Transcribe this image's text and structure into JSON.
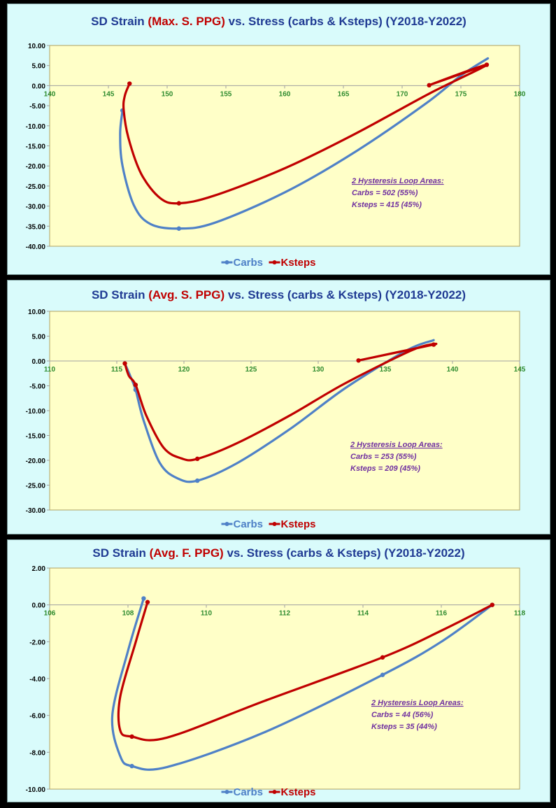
{
  "colors": {
    "carbs": "#4f81c7",
    "ksteps": "#c00000",
    "title_blue": "#1f3a93",
    "title_red": "#c00000",
    "annot": "#7030a0",
    "plot_bg": "#ffffc8",
    "plot_border": "#b0a060",
    "axis": "#a0a0a0",
    "x_tick": "#2e8b2e"
  },
  "legend": {
    "carbs": "Carbs",
    "ksteps": "Ksteps"
  },
  "chart_data": [
    {
      "type": "line",
      "title_prefix": "SD Strain ",
      "title_highlight": "(Max. S. PPG)",
      "title_suffix": " vs. Stress (carbs & Ksteps)  (Y2018-Y2022)",
      "xlim": [
        140,
        180
      ],
      "ylim": [
        -40,
        10
      ],
      "x_ticks": [
        "140",
        "145",
        "150",
        "155",
        "160",
        "165",
        "170",
        "175",
        "180"
      ],
      "y_ticks": [
        "10.00",
        "5.00",
        "0.00",
        "-5.00",
        "-10.00",
        "-15.00",
        "-20.00",
        "-25.00",
        "-30.00",
        "-35.00",
        "-40.00"
      ],
      "series": [
        {
          "name": "Carbs",
          "points": [
            [
              146.2,
              -6.2
            ],
            [
              146.0,
              -12.0
            ],
            [
              146.2,
              -20.0
            ],
            [
              147.2,
              -30.0
            ],
            [
              148.6,
              -34.5
            ],
            [
              151.0,
              -35.6
            ],
            [
              154.0,
              -34.2
            ],
            [
              160.0,
              -26.6
            ],
            [
              166.0,
              -16.5
            ],
            [
              172.0,
              -4.5
            ],
            [
              175.0,
              2.5
            ],
            [
              177.3,
              6.8
            ]
          ],
          "markers": [
            [
              146.2,
              -6.2
            ],
            [
              151.0,
              -35.6
            ]
          ]
        },
        {
          "name": "Ksteps",
          "points": [
            [
              146.8,
              0.5
            ],
            [
              146.4,
              -2.5
            ],
            [
              146.3,
              -6.0
            ],
            [
              146.7,
              -13.0
            ],
            [
              147.8,
              -22.0
            ],
            [
              149.4,
              -28.0
            ],
            [
              151.0,
              -29.3
            ],
            [
              154.0,
              -27.4
            ],
            [
              160.0,
              -20.6
            ],
            [
              166.0,
              -12.0
            ],
            [
              172.3,
              -2.0
            ],
            [
              177.2,
              5.2
            ],
            [
              172.3,
              0.1
            ],
            [
              177.2,
              5.2
            ]
          ],
          "markers": [
            [
              146.8,
              0.5
            ],
            [
              151.0,
              -29.3
            ],
            [
              172.3,
              0.1
            ],
            [
              177.2,
              5.2
            ]
          ]
        }
      ],
      "annotation": [
        "2 Hysteresis Loop Areas:",
        "Carbs = 502 (55%)",
        "Ksteps = 415 (45%)"
      ]
    },
    {
      "type": "line",
      "title_prefix": "SD Strain ",
      "title_highlight": "(Avg. S. PPG)",
      "title_suffix": " vs. Stress (carbs & Ksteps)  (Y2018-Y2022)",
      "xlim": [
        110,
        145
      ],
      "ylim": [
        -30,
        10
      ],
      "x_ticks": [
        "110",
        "115",
        "120",
        "125",
        "130",
        "135",
        "140",
        "145"
      ],
      "y_ticks": [
        "10.00",
        "5.00",
        "0.00",
        "-5.00",
        "-10.00",
        "-15.00",
        "-20.00",
        "-25.00",
        "-30.00"
      ],
      "series": [
        {
          "name": "Carbs",
          "points": [
            [
              115.6,
              -0.5
            ],
            [
              116.0,
              -3.0
            ],
            [
              116.4,
              -5.8
            ],
            [
              117.0,
              -12.0
            ],
            [
              118.2,
              -20.5
            ],
            [
              119.5,
              -23.6
            ],
            [
              121.0,
              -24.1
            ],
            [
              124.0,
              -20.5
            ],
            [
              128.0,
              -13.5
            ],
            [
              132.0,
              -5.5
            ],
            [
              136.5,
              2.0
            ],
            [
              138.6,
              4.2
            ]
          ],
          "markers": [
            [
              116.4,
              -5.8
            ],
            [
              121.0,
              -24.1
            ]
          ]
        },
        {
          "name": "Ksteps",
          "points": [
            [
              115.6,
              -0.5
            ],
            [
              115.9,
              -3.0
            ],
            [
              116.4,
              -4.8
            ],
            [
              117.2,
              -11.0
            ],
            [
              118.5,
              -17.5
            ],
            [
              119.8,
              -19.6
            ],
            [
              121.0,
              -19.7
            ],
            [
              124.0,
              -16.5
            ],
            [
              128.0,
              -10.8
            ],
            [
              132.0,
              -4.5
            ],
            [
              137.0,
              2.2
            ],
            [
              138.6,
              3.3
            ],
            [
              133.0,
              0.1
            ],
            [
              138.6,
              3.3
            ]
          ],
          "markers": [
            [
              115.6,
              -0.5
            ],
            [
              116.4,
              -4.8
            ],
            [
              121.0,
              -19.7
            ],
            [
              133.0,
              0.1
            ],
            [
              138.6,
              3.3
            ]
          ]
        }
      ],
      "annotation": [
        "2 Hysteresis Loop Areas:",
        "Carbs = 253 (55%)",
        "Ksteps = 209 (45%)"
      ]
    },
    {
      "type": "line",
      "title_prefix": "SD Strain ",
      "title_highlight": "(Avg. F. PPG)",
      "title_suffix": " vs. Stress (carbs & Ksteps)  (Y2018-Y2022)",
      "xlim": [
        106,
        118
      ],
      "ylim": [
        -10,
        2
      ],
      "x_ticks": [
        "106",
        "108",
        "110",
        "112",
        "114",
        "116",
        "118"
      ],
      "y_ticks": [
        "2.00",
        "0.00",
        "-2.00",
        "-4.00",
        "-6.00",
        "-8.00",
        "-10.00"
      ],
      "series": [
        {
          "name": "Carbs",
          "points": [
            [
              108.4,
              0.35
            ],
            [
              108.0,
              -2.5
            ],
            [
              107.6,
              -6.0
            ],
            [
              107.8,
              -8.2
            ],
            [
              108.1,
              -8.75
            ],
            [
              109.0,
              -8.8
            ],
            [
              111.5,
              -6.9
            ],
            [
              114.5,
              -3.8
            ],
            [
              116.0,
              -2.0
            ],
            [
              117.3,
              0.0
            ]
          ],
          "markers": [
            [
              108.4,
              0.35
            ],
            [
              108.1,
              -8.75
            ],
            [
              114.5,
              -3.8
            ],
            [
              117.3,
              0.0
            ]
          ]
        },
        {
          "name": "Ksteps",
          "points": [
            [
              108.5,
              0.15
            ],
            [
              108.2,
              -2.0
            ],
            [
              107.8,
              -5.0
            ],
            [
              107.8,
              -6.8
            ],
            [
              108.1,
              -7.15
            ],
            [
              109.0,
              -7.2
            ],
            [
              111.5,
              -5.2
            ],
            [
              114.5,
              -2.85
            ],
            [
              116.0,
              -1.4
            ],
            [
              117.3,
              0.0
            ]
          ],
          "markers": [
            [
              108.5,
              0.15
            ],
            [
              108.1,
              -7.15
            ],
            [
              114.5,
              -2.85
            ],
            [
              117.3,
              0.0
            ]
          ]
        }
      ],
      "annotation": [
        "2 Hysteresis Loop Areas:",
        "Carbs = 44 (56%)",
        "Ksteps = 35 (44%)"
      ]
    }
  ]
}
